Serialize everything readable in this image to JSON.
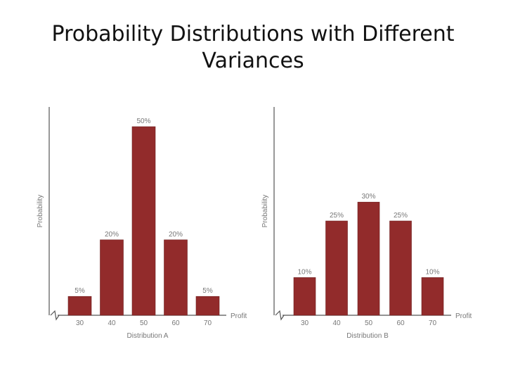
{
  "slide": {
    "title_line1": "Probability Distributions with Different",
    "title_line2": "Variances"
  },
  "colors": {
    "bar": "#922B2B",
    "axis": "#555555",
    "text": "#777777"
  },
  "chart_data": [
    {
      "type": "bar",
      "title": "Distribution A",
      "xlabel": "Profit",
      "ylabel": "Probability",
      "categories": [
        "30",
        "40",
        "50",
        "60",
        "70"
      ],
      "values": [
        5,
        20,
        50,
        20,
        5
      ],
      "data_labels": [
        "5%",
        "20%",
        "50%",
        "20%",
        "5%"
      ],
      "ylim": [
        0,
        50
      ]
    },
    {
      "type": "bar",
      "title": "Distribution B",
      "xlabel": "Profit",
      "ylabel": "Probability",
      "categories": [
        "30",
        "40",
        "50",
        "60",
        "70"
      ],
      "values": [
        10,
        25,
        30,
        25,
        10
      ],
      "data_labels": [
        "10%",
        "25%",
        "30%",
        "25%",
        "10%"
      ],
      "ylim": [
        0,
        50
      ]
    }
  ]
}
